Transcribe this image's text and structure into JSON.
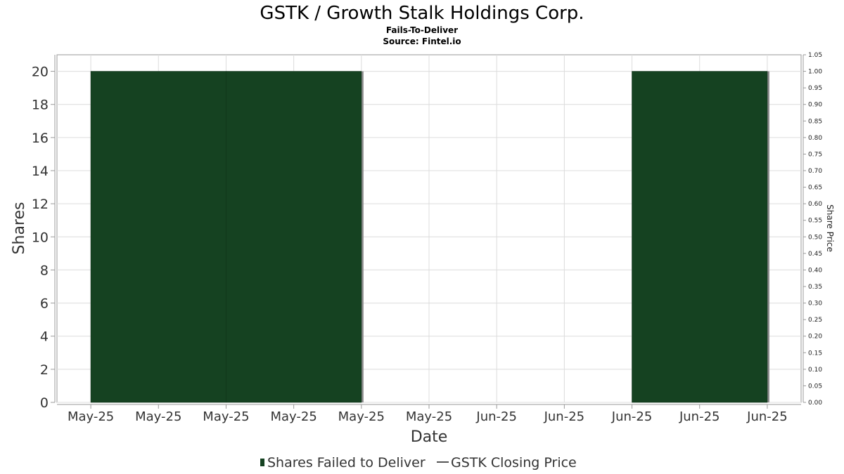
{
  "header": {
    "title": "GSTK / Growth Stalk Holdings Corp.",
    "subtitle": "Fails-To-Deliver",
    "source": "Source: Fintel.io"
  },
  "chart_data": {
    "type": "bar",
    "title": "GSTK / Growth Stalk Holdings Corp.",
    "subtitle": "Fails-To-Deliver",
    "xlabel": "Date",
    "ylabel": "Shares",
    "y2label": "Share Price",
    "ylim": [
      0,
      21
    ],
    "y2lim": [
      0.0,
      1.05
    ],
    "yticks": [
      0,
      2,
      4,
      6,
      8,
      10,
      12,
      14,
      16,
      18,
      20
    ],
    "y2ticks": [
      "0.00",
      "0.05",
      "0.10",
      "0.15",
      "0.20",
      "0.25",
      "0.30",
      "0.35",
      "0.40",
      "0.45",
      "0.50",
      "0.55",
      "0.60",
      "0.65",
      "0.70",
      "0.75",
      "0.80",
      "0.85",
      "0.90",
      "0.95",
      "1.00",
      "1.05"
    ],
    "xticks": [
      "May-25",
      "May-25",
      "May-25",
      "May-25",
      "May-25",
      "May-25",
      "Jun-25",
      "Jun-25",
      "Jun-25",
      "Jun-25",
      "Jun-25"
    ],
    "x_index_range": [
      -0.5,
      10.5
    ],
    "series": [
      {
        "name": "Shares Failed to Deliver",
        "type": "bar",
        "color": "#154221",
        "bars": [
          {
            "x_start": 0,
            "x_end": 2,
            "value": 20
          },
          {
            "x_start": 2,
            "x_end": 4,
            "value": 20
          },
          {
            "x_start": 8,
            "x_end": 10,
            "value": 20
          }
        ]
      },
      {
        "name": "GSTK Closing Price",
        "type": "line",
        "color": "#555555",
        "values": []
      }
    ],
    "grid": true,
    "legend": "bottom-center"
  },
  "legend": {
    "ftd_label": "Shares Failed to Deliver",
    "price_label": "GSTK Closing Price",
    "ftd_color": "#154221",
    "price_color": "#555555"
  }
}
